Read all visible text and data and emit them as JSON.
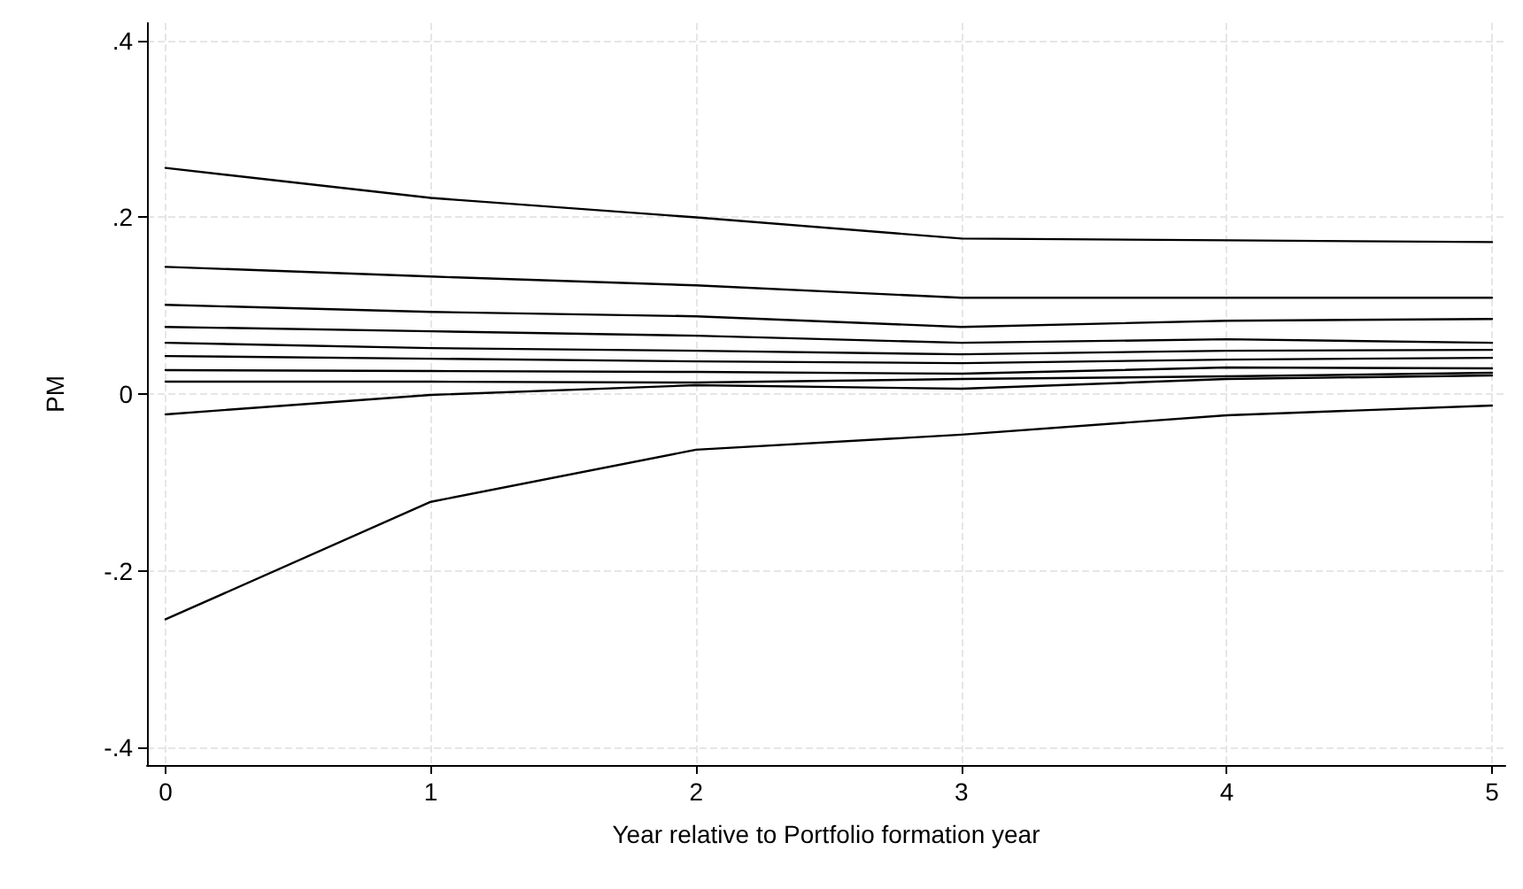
{
  "chart_data": {
    "type": "line",
    "xlabel": "Year relative to Portfolio formation year",
    "ylabel": "PM",
    "x": [
      0,
      1,
      2,
      3,
      4,
      5
    ],
    "xlim": [
      -0.07,
      5.05
    ],
    "xticks": [
      0,
      1,
      2,
      3,
      4,
      5
    ],
    "ylim": [
      -0.42,
      0.42
    ],
    "yticks": [
      {
        "value": -0.4,
        "label": "-.4"
      },
      {
        "value": -0.2,
        "label": "-.2"
      },
      0,
      {
        "value": 0.2,
        "label": ".2"
      },
      {
        "value": 0.4,
        "label": ".4"
      }
    ],
    "grid": true,
    "marker": "none",
    "line_style": "solid",
    "series": [
      {
        "color": "#000000",
        "values": [
          0.256,
          0.222,
          0.2,
          0.176,
          0.174,
          0.172
        ]
      },
      {
        "color": "#000000",
        "values": [
          0.144,
          0.133,
          0.123,
          0.109,
          0.109,
          0.109
        ]
      },
      {
        "color": "#000000",
        "values": [
          0.101,
          0.093,
          0.088,
          0.076,
          0.083,
          0.085
        ]
      },
      {
        "color": "#000000",
        "values": [
          0.076,
          0.071,
          0.066,
          0.058,
          0.062,
          0.058
        ]
      },
      {
        "color": "#000000",
        "values": [
          0.058,
          0.052,
          0.049,
          0.045,
          0.049,
          0.05
        ]
      },
      {
        "color": "#000000",
        "values": [
          0.043,
          0.04,
          0.037,
          0.035,
          0.039,
          0.041
        ]
      },
      {
        "color": "#000000",
        "values": [
          0.027,
          0.026,
          0.025,
          0.023,
          0.03,
          0.029
        ]
      },
      {
        "color": "#000000",
        "values": [
          0.014,
          0.014,
          0.013,
          0.017,
          0.02,
          0.024
        ]
      },
      {
        "color": "#000000",
        "values": [
          -0.023,
          -0.001,
          0.01,
          0.006,
          0.017,
          0.021
        ]
      },
      {
        "color": "#000000",
        "values": [
          -0.255,
          -0.122,
          -0.063,
          -0.046,
          -0.024,
          -0.013
        ]
      }
    ]
  }
}
